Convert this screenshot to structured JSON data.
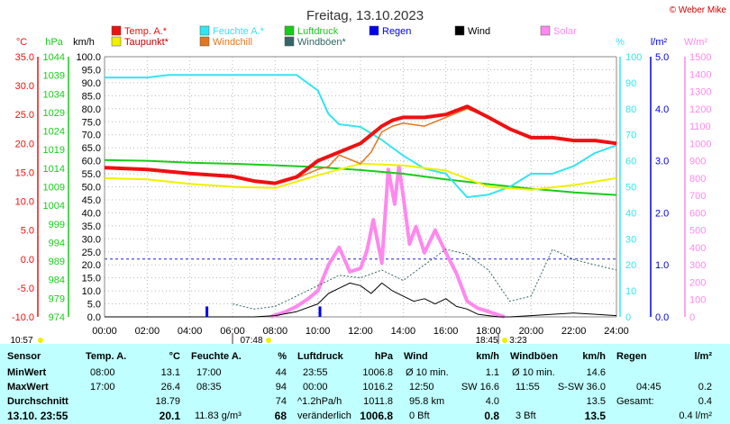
{
  "title": "Freitag, 13.10.2023",
  "copyright": "© Weber Mike",
  "colors": {
    "temp": "#ee1111",
    "feuchte": "#33e5f0",
    "luftdruck": "#18cc18",
    "regen": "#0000ee",
    "wind": "#000000",
    "solar": "#ff88ee",
    "taupunkt": "#f0f000",
    "windchill": "#e07820",
    "windboeen": "#336666",
    "panel": "#bfffff"
  },
  "legend": [
    {
      "label": "Temp. A.*",
      "color": "#ee1111"
    },
    {
      "label": "Feuchte A.*",
      "color": "#33e5f0"
    },
    {
      "label": "Luftdruck",
      "color": "#18cc18"
    },
    {
      "label": "Regen",
      "color": "#0000ee"
    },
    {
      "label": "Wind",
      "color": "#000000"
    },
    {
      "label": "Solar",
      "color": "#ff88ee"
    },
    {
      "label": "Taupunkt*",
      "color": "#f0f000"
    },
    {
      "label": "Windchill",
      "color": "#e07820"
    },
    {
      "label": "Windböen*",
      "color": "#336666"
    }
  ],
  "axes": {
    "temp_unit": "°C",
    "hpa_unit": "hPa",
    "kmh_unit": "km/h",
    "pct_unit": "%",
    "rain_unit": "l/m²",
    "solar_unit": "W/m²",
    "temp_ticks": [
      "35.0",
      "30.0",
      "25.0",
      "20.0",
      "15.0",
      "10.0",
      "5.0",
      "0.0",
      "-5.0",
      "-10.0"
    ],
    "hpa_ticks": [
      "1044",
      "1039",
      "1034",
      "1029",
      "1024",
      "1019",
      "1014",
      "1009",
      "1004",
      "999",
      "994",
      "989",
      "984",
      "979",
      "974"
    ],
    "kmh_ticks": [
      "100.0",
      "95.0",
      "90.0",
      "85.0",
      "80.0",
      "75.0",
      "70.0",
      "65.0",
      "60.0",
      "55.0",
      "50.0",
      "45.0",
      "40.0",
      "35.0",
      "30.0",
      "25.0",
      "20.0",
      "15.0",
      "10.0",
      "5.0",
      "0.0"
    ],
    "pct_ticks": [
      "100",
      "90",
      "80",
      "70",
      "60",
      "50",
      "40",
      "30",
      "20",
      "10",
      "0"
    ],
    "rain_ticks": [
      "5.0",
      "4.0",
      "3.0",
      "2.0",
      "1.0",
      "0.0"
    ],
    "solar_ticks": [
      "1500",
      "1400",
      "1300",
      "1200",
      "1100",
      "1000",
      "900",
      "800",
      "700",
      "600",
      "500",
      "400",
      "300",
      "200",
      "100",
      "0"
    ],
    "time_ticks": [
      "00:00",
      "02:00",
      "04:00",
      "06:00",
      "08:00",
      "10:00",
      "12:00",
      "14:00",
      "16:00",
      "18:00",
      "20:00",
      "22:00",
      "24:00"
    ]
  },
  "time_markers": {
    "sunrise": "07:48",
    "sunset": "18:45",
    "moon_left": "10:57",
    "moon_right": "3:23"
  },
  "chart_data": {
    "type": "line",
    "x_unit": "hours",
    "xlim": [
      0,
      24
    ],
    "series": [
      {
        "name": "Temp. A.*",
        "unit": "°C",
        "x": [
          0,
          2,
          4,
          6,
          7,
          8,
          9,
          10,
          11,
          12,
          13,
          13.5,
          14,
          15,
          16,
          17,
          18,
          19,
          20,
          21,
          22,
          23,
          24
        ],
        "y": [
          15.8,
          15.5,
          14.8,
          14.3,
          13.5,
          13.1,
          14.2,
          17,
          18.5,
          20,
          23,
          24,
          24.5,
          24.5,
          25,
          26.4,
          24.5,
          22.5,
          21,
          21,
          20.5,
          20.5,
          20
        ]
      },
      {
        "name": "Windchill",
        "unit": "°C",
        "x": [
          0,
          2,
          4,
          6,
          7,
          8,
          9,
          10,
          10.5,
          11,
          12,
          12.5,
          13,
          13.5,
          14,
          15,
          16,
          17,
          18,
          19,
          20,
          21,
          22,
          23,
          24
        ],
        "y": [
          15.8,
          15.5,
          14.8,
          14.3,
          13.5,
          13.1,
          14,
          15.5,
          16,
          18,
          16.5,
          18.5,
          22,
          23,
          23.5,
          23,
          24.5,
          26,
          24.5,
          22.5,
          21,
          21,
          20.5,
          20.5,
          20
        ]
      },
      {
        "name": "Taupunkt*",
        "unit": "°C",
        "x": [
          0,
          2,
          4,
          6,
          8,
          10,
          12,
          14,
          16,
          18,
          20,
          22,
          24
        ],
        "y": [
          14,
          13.8,
          13,
          12.5,
          12.3,
          14.5,
          16.5,
          16.2,
          15.3,
          12.5,
          12,
          12.8,
          14
        ]
      },
      {
        "name": "Feuchte A.*",
        "unit": "%",
        "x": [
          0,
          2,
          3,
          6,
          8,
          9,
          10,
          10.5,
          11,
          12,
          13,
          14,
          15,
          16,
          17,
          18,
          19,
          20,
          21,
          22,
          23,
          24
        ],
        "y": [
          92,
          92,
          93,
          93,
          93,
          93,
          87,
          78,
          74,
          73,
          68,
          62,
          57,
          55,
          46,
          47,
          50,
          55,
          55,
          58,
          63,
          66
        ]
      },
      {
        "name": "Luftdruck",
        "unit": "hPa",
        "x": [
          0,
          2,
          4,
          6,
          8,
          10,
          12,
          14,
          16,
          18,
          20,
          22,
          24
        ],
        "y": [
          1016.2,
          1016,
          1015.5,
          1015.2,
          1014.8,
          1014.3,
          1013.5,
          1012.5,
          1011,
          1009.7,
          1008.5,
          1007.5,
          1006.8
        ]
      },
      {
        "name": "Solar",
        "unit": "W/m²",
        "x": [
          7.8,
          8,
          8.5,
          9,
          9.5,
          10,
          10.5,
          11,
          11.5,
          12,
          12.3,
          12.6,
          13,
          13.3,
          13.6,
          13.8,
          14,
          14.3,
          14.6,
          15,
          15.5,
          16,
          16.5,
          17,
          17.5,
          18,
          18.5,
          18.75
        ],
        "y": [
          0,
          10,
          30,
          60,
          100,
          150,
          300,
          400,
          260,
          280,
          380,
          560,
          310,
          850,
          650,
          870,
          700,
          420,
          520,
          370,
          500,
          370,
          250,
          90,
          50,
          30,
          10,
          0
        ]
      },
      {
        "name": "Wind",
        "unit": "km/h",
        "x": [
          0,
          7,
          8,
          9,
          10,
          10.5,
          11,
          11.5,
          12,
          12.5,
          13,
          13.5,
          14,
          14.5,
          15,
          15.5,
          16,
          16.5,
          17,
          17.5,
          18,
          18.5,
          19,
          20,
          21,
          22,
          23,
          24
        ],
        "y": [
          0,
          0,
          0.5,
          2,
          5,
          9,
          11,
          13,
          12,
          9,
          13,
          10,
          8,
          6,
          7,
          5,
          7,
          4,
          3,
          1,
          0.5,
          0,
          0,
          0.5,
          1,
          1.5,
          1,
          0.5
        ]
      },
      {
        "name": "Windböen*",
        "unit": "km/h",
        "x": [
          6,
          7,
          8,
          9,
          10,
          11,
          12,
          13,
          14,
          15,
          16,
          17,
          18,
          19,
          20,
          21,
          22,
          23,
          24
        ],
        "y": [
          5,
          3,
          4,
          8,
          12,
          16,
          15,
          18,
          14,
          20,
          26,
          24,
          18,
          6,
          8,
          26,
          22,
          20,
          18
        ]
      },
      {
        "name": "Regen",
        "unit": "l/m²",
        "x": [
          4.8,
          10.1
        ],
        "y": [
          0.2,
          0.2
        ]
      }
    ]
  },
  "stats": {
    "headers": {
      "sensor": "Sensor",
      "temp": "Temp. A.",
      "temp_unit": "°C",
      "feuchte": "Feuchte A.",
      "feuchte_unit": "%",
      "luftdruck": "Luftdruck",
      "luftdruck_unit": "hPa",
      "wind": "Wind",
      "wind_unit": "km/h",
      "windboeen": "Windböen",
      "windboeen_unit": "km/h",
      "regen": "Regen",
      "regen_unit": "l/m²"
    },
    "rows": {
      "min": {
        "label": "MinWert",
        "temp_time": "08:00",
        "temp_val": "13.1",
        "feuchte_time": "17:00",
        "feuchte_val": "44",
        "druck_time": "23:55",
        "druck_val": "1006.8",
        "wind_time": "Ø 10 min.",
        "wind_val": "1.1",
        "boeen_time": "Ø 10 min.",
        "boeen_val": "14.6",
        "regen_time": "",
        "regen_val": ""
      },
      "max": {
        "label": "MaxWert",
        "temp_time": "17:00",
        "temp_val": "26.4",
        "feuchte_time": "08:35",
        "feuchte_val": "94",
        "druck_time": "00:00",
        "druck_val": "1016.2",
        "wind_time": "12:50",
        "wind_dir": "SW 16.6",
        "boeen_time": "11:55",
        "boeen_val": "S-SW 36.0",
        "regen_time": "04:45",
        "regen_val": "0.2"
      },
      "avg": {
        "label": "Durchschnitt",
        "temp_val": "18.79",
        "feuchte_val": "74",
        "druck_time": "^1.2hPa/h",
        "druck_val": "1011.8",
        "wind_time": "95.8 km",
        "wind_val": "4.0",
        "boeen_val": "13.5",
        "regen_time": "Gesamt:",
        "regen_val": "0.4"
      },
      "current": {
        "label": "13.10. 23:55",
        "temp_val": "20.1",
        "feuchte_time": "11.83 g/m³",
        "feuchte_val": "68",
        "druck_time": "veränderlich",
        "druck_val": "1006.8",
        "wind_time": "0 Bft",
        "wind_val": "0.8",
        "boeen_time": "3 Bft",
        "boeen_val": "13.5",
        "regen_val": "0.4 l/m²"
      }
    }
  }
}
